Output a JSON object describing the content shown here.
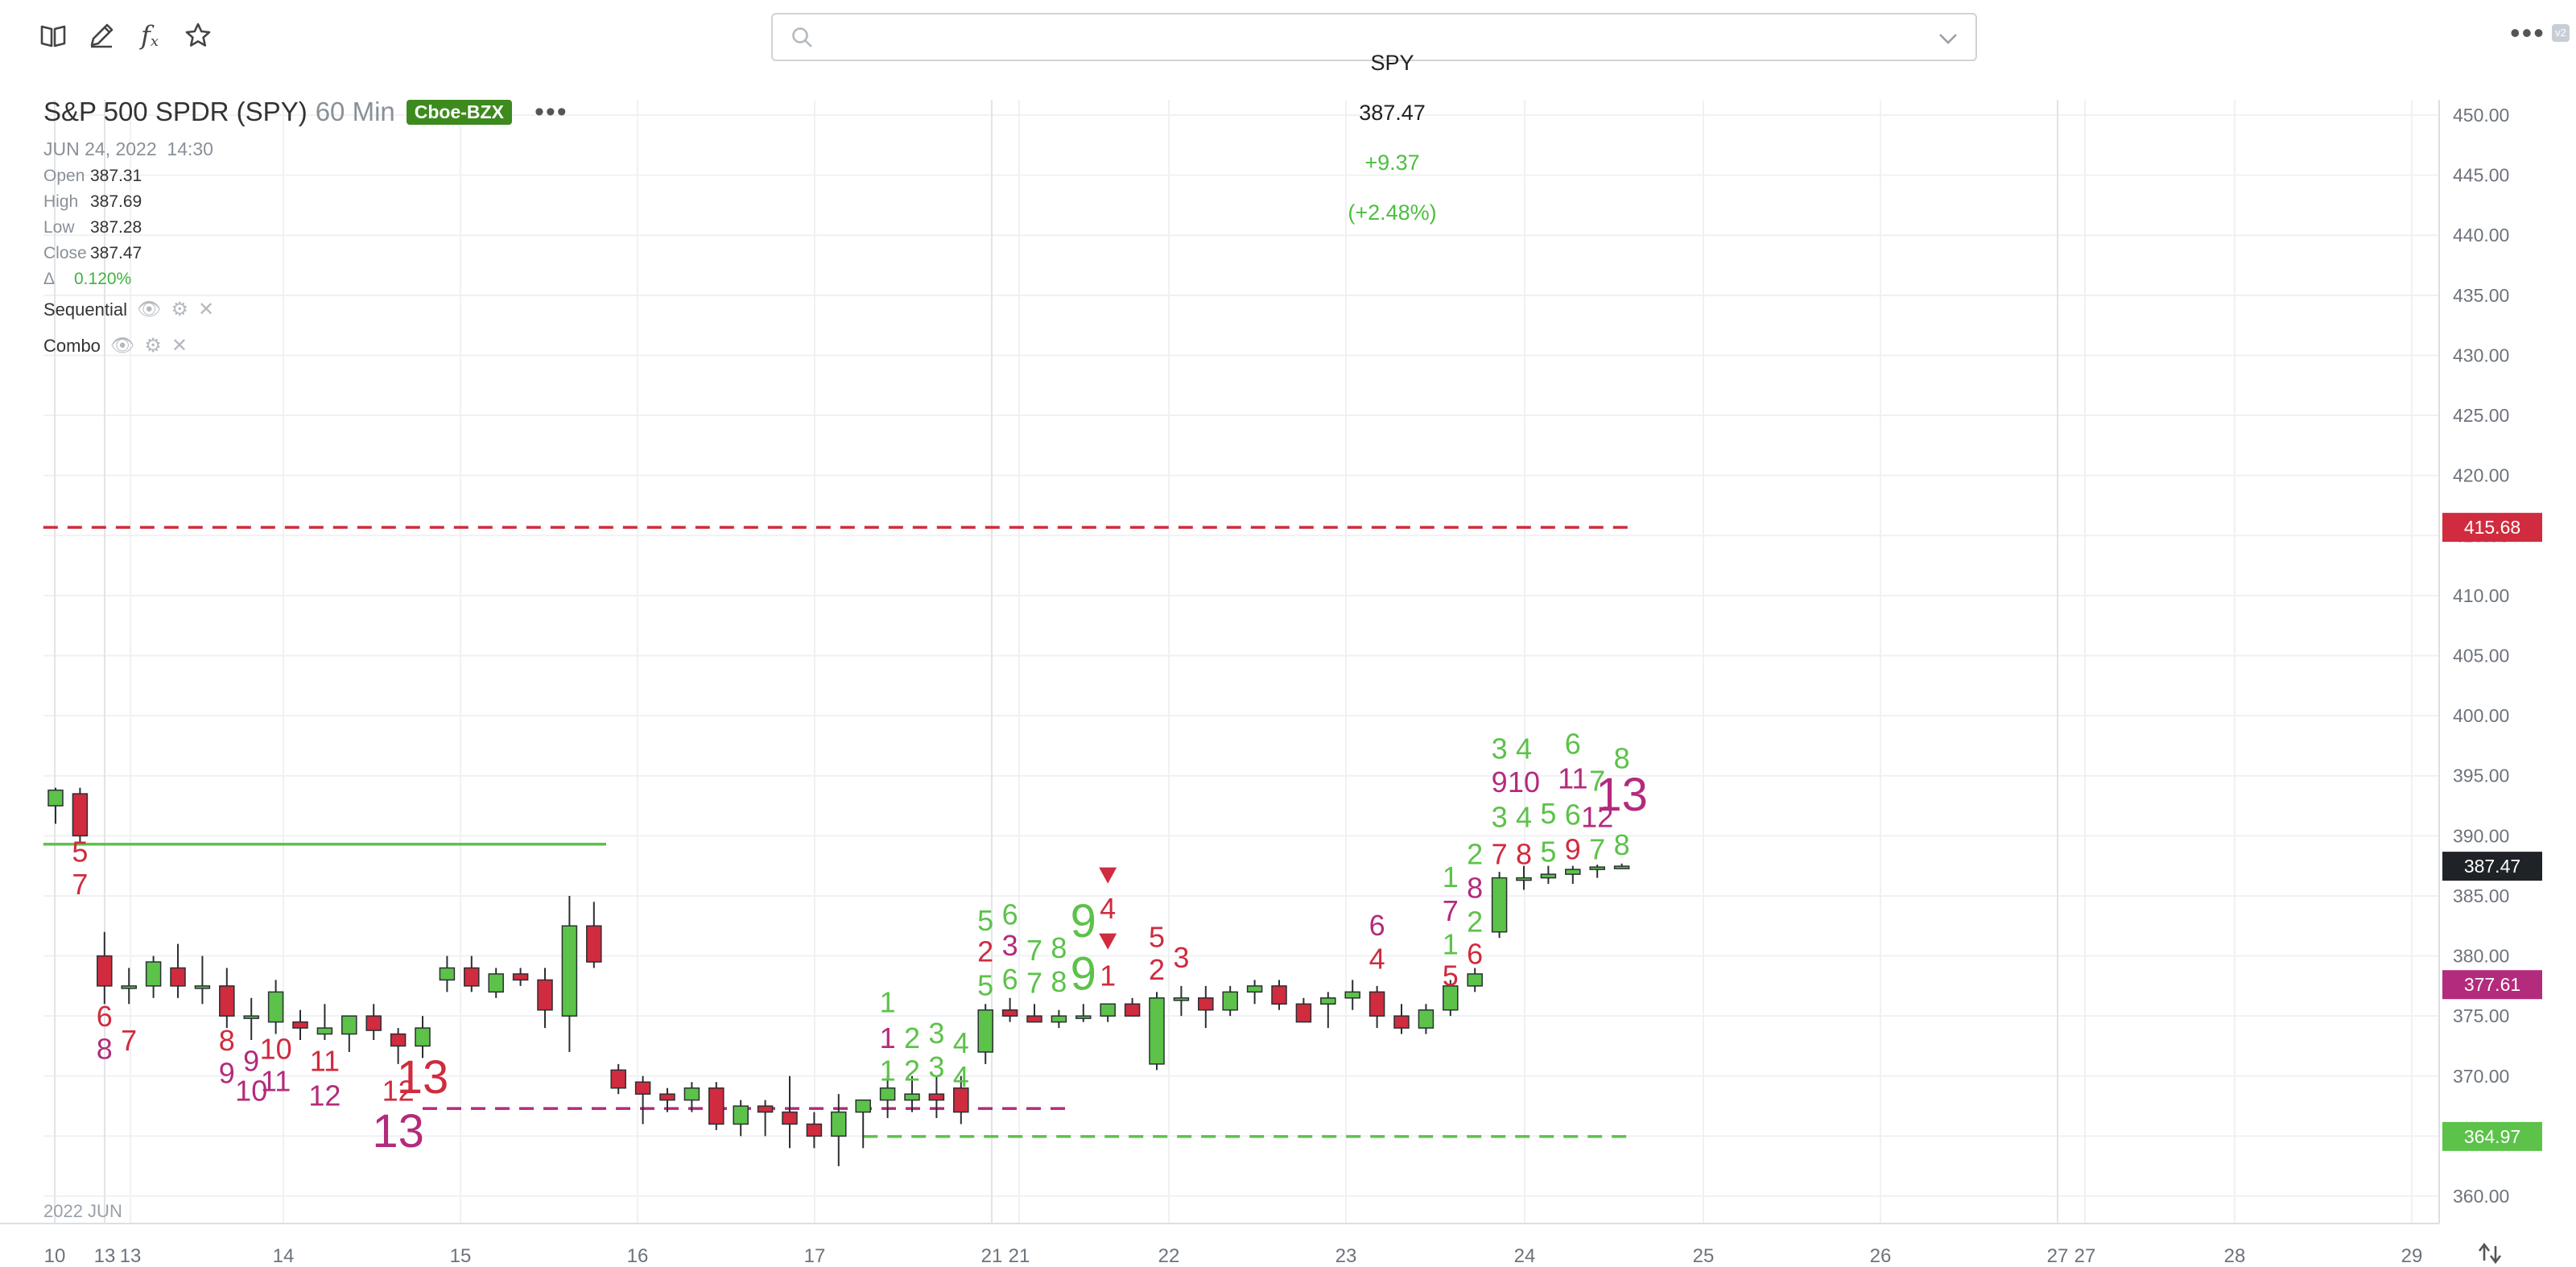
{
  "toolbar": {
    "icons": [
      "book-icon",
      "pencil-icon",
      "function-icon",
      "star-icon"
    ],
    "more_icon": "more-dots-icon"
  },
  "search": {
    "symbol": "SPY",
    "price": "387.47",
    "change": "+9.37",
    "change_pct": "(+2.48%)",
    "change_color": "#4cbf3f"
  },
  "legend": {
    "title": "S&P 500 SPDR (SPY)",
    "interval": "60 Min",
    "exchange": "Cboe-BZX",
    "datetime": "JUN 24, 2022  14:30",
    "open_label": "Open",
    "open": "387.31",
    "high_label": "High",
    "high": "387.69",
    "low_label": "Low",
    "low": "387.28",
    "close_label": "Close",
    "close": "387.47",
    "delta_label": "Δ",
    "delta": "0.120%"
  },
  "indicators": [
    "Sequential",
    "Combo"
  ],
  "colors": {
    "up": "#5cc24a",
    "down": "#d02b3e",
    "green_text": "#5cc24a",
    "red_text": "#d02b3e",
    "magenta_text": "#b32b7c",
    "grid": "#f0f1f3"
  },
  "chart_data": {
    "type": "candlestick",
    "symbol": "SPY",
    "ylim": [
      358,
      452
    ],
    "yticks": [
      "450.00",
      "445.00",
      "440.00",
      "435.00",
      "430.00",
      "425.00",
      "420.00",
      "415.00",
      "410.00",
      "405.00",
      "400.00",
      "395.00",
      "390.00",
      "385.00",
      "380.00",
      "375.00",
      "370.00",
      "365.00",
      "360.00"
    ],
    "xtick_labels": [
      "10",
      "13",
      "13",
      "14",
      "15",
      "16",
      "17",
      "21",
      "21",
      "22",
      "23",
      "24",
      "25",
      "26",
      "27",
      "27",
      "28",
      "29"
    ],
    "x_extra_label": "2022 JUN",
    "price_tags": [
      {
        "value": 415.68,
        "label": "415.68",
        "color": "#d02b3e"
      },
      {
        "value": 387.47,
        "label": "387.47",
        "color": "#1f2327"
      },
      {
        "value": 377.61,
        "label": "377.61",
        "color": "#b32b7c"
      },
      {
        "value": 364.97,
        "label": "364.97",
        "color": "#5cc24a"
      }
    ],
    "candles": [
      [
        0,
        392.5,
        394,
        391,
        393.8
      ],
      [
        1,
        393.5,
        394,
        389.5,
        390
      ],
      [
        2,
        380,
        382,
        376,
        377.5
      ],
      [
        3,
        377.5,
        379,
        376,
        377.5
      ],
      [
        4,
        377.5,
        380,
        376.5,
        379.5
      ],
      [
        5,
        379,
        381,
        376.5,
        377.5
      ],
      [
        6,
        377.5,
        380,
        376,
        377.5
      ],
      [
        7,
        377.5,
        379,
        374,
        375
      ],
      [
        8,
        375,
        376.5,
        373,
        375
      ],
      [
        9,
        374.5,
        378,
        373.5,
        377
      ],
      [
        10,
        374.5,
        375.5,
        373,
        374
      ],
      [
        11,
        373.5,
        376,
        373,
        374
      ],
      [
        12,
        373.5,
        375,
        372,
        375
      ],
      [
        13,
        375,
        376,
        373,
        373.8
      ],
      [
        14,
        373.5,
        374,
        371,
        372.5
      ],
      [
        15,
        372.5,
        375,
        371.5,
        374
      ],
      [
        16,
        378,
        380,
        377,
        379
      ],
      [
        17,
        379,
        380,
        377,
        377.5
      ],
      [
        18,
        377,
        379,
        376.5,
        378.5
      ],
      [
        19,
        378.5,
        379,
        377.5,
        378
      ],
      [
        20,
        378,
        379,
        374,
        375.5
      ],
      [
        21,
        375,
        385,
        372,
        382.5
      ],
      [
        22,
        382.5,
        384.5,
        379,
        379.5
      ],
      [
        23,
        370.5,
        371,
        368.5,
        369
      ],
      [
        24,
        369.5,
        370,
        366,
        368.5
      ],
      [
        25,
        368.5,
        369,
        367,
        368
      ],
      [
        26,
        368,
        369.5,
        367,
        369
      ],
      [
        27,
        369,
        369.5,
        365.5,
        366
      ],
      [
        28,
        366,
        368,
        365,
        367.5
      ],
      [
        29,
        367.5,
        368,
        365,
        367
      ],
      [
        30,
        367,
        370,
        364,
        366
      ],
      [
        31,
        366,
        367,
        364,
        365
      ],
      [
        32,
        365,
        368.5,
        362.5,
        367
      ],
      [
        33,
        367,
        368,
        364,
        368
      ],
      [
        34,
        368,
        370,
        366.5,
        369
      ],
      [
        35,
        368,
        370,
        367,
        368.5
      ],
      [
        36,
        368.5,
        370,
        366.5,
        368
      ],
      [
        37,
        369,
        370,
        366,
        367
      ],
      [
        38,
        372,
        376,
        371,
        375.5
      ],
      [
        39,
        375.5,
        376.5,
        374.5,
        375
      ],
      [
        40,
        375,
        376,
        374.5,
        374.5
      ],
      [
        41,
        374.5,
        375.5,
        374,
        375
      ],
      [
        42,
        375,
        376,
        374.5,
        375
      ],
      [
        43,
        375,
        376,
        374.5,
        376
      ],
      [
        44,
        376,
        376.5,
        375,
        375
      ],
      [
        45,
        371,
        377,
        370.5,
        376.5
      ],
      [
        46,
        376.5,
        377.5,
        375,
        376.5
      ],
      [
        47,
        376.5,
        377.5,
        374,
        375.5
      ],
      [
        48,
        375.5,
        377.5,
        375,
        377
      ],
      [
        49,
        377,
        378,
        376,
        377.5
      ],
      [
        50,
        377.5,
        378,
        375.5,
        376
      ],
      [
        51,
        376,
        376.5,
        374.5,
        374.5
      ],
      [
        52,
        376,
        377,
        374,
        376.5
      ],
      [
        53,
        376.5,
        378,
        375.5,
        377
      ],
      [
        54,
        377,
        377.5,
        374,
        375
      ],
      [
        55,
        375,
        376,
        373.5,
        374
      ],
      [
        56,
        374,
        376,
        373.5,
        375.5
      ],
      [
        57,
        375.5,
        378,
        375,
        377.5
      ],
      [
        58,
        377.5,
        379,
        377,
        378.5
      ],
      [
        59,
        382,
        387,
        381.5,
        386.5
      ],
      [
        60,
        386.5,
        387.5,
        385.5,
        386.5
      ],
      [
        61,
        386.5,
        387.5,
        386,
        386.8
      ],
      [
        62,
        386.8,
        387.5,
        386,
        387.2
      ],
      [
        63,
        387.2,
        387.6,
        386.5,
        387.4
      ],
      [
        64,
        387.31,
        387.69,
        387.28,
        387.47
      ]
    ],
    "counts": [
      {
        "i": 1,
        "text": "5",
        "color": "red",
        "y": 388.7
      },
      {
        "i": 1,
        "text": "7",
        "color": "red",
        "y": 386.0
      },
      {
        "i": 2,
        "text": "6",
        "color": "red",
        "y": 375.0
      },
      {
        "i": 2,
        "text": "8",
        "color": "magenta",
        "y": 372.3
      },
      {
        "i": 3,
        "text": "7",
        "color": "red",
        "y": 373.0
      },
      {
        "i": 7,
        "text": "8",
        "color": "red",
        "y": 373.0
      },
      {
        "i": 7,
        "text": "9",
        "color": "magenta",
        "y": 370.3
      },
      {
        "i": 8,
        "text": "9",
        "color": "magenta",
        "y": 371.3
      },
      {
        "i": 8,
        "text": "10",
        "color": "magenta",
        "y": 368.8
      },
      {
        "i": 9,
        "text": "10",
        "color": "red",
        "y": 372.3
      },
      {
        "i": 9,
        "text": "11",
        "color": "magenta",
        "y": 369.6
      },
      {
        "i": 11,
        "text": "11",
        "color": "red",
        "y": 371.3
      },
      {
        "i": 11,
        "text": "12",
        "color": "magenta",
        "y": 368.4
      },
      {
        "i": 14,
        "text": "12",
        "color": "red",
        "y": 368.8
      },
      {
        "i": 14,
        "text": "13",
        "color": "magenta",
        "y": 365.3,
        "big": true
      },
      {
        "i": 15,
        "text": "13",
        "color": "red",
        "y": 369.8,
        "big": true
      },
      {
        "i": 34,
        "text": "1",
        "color": "green",
        "y": 376.2
      },
      {
        "i": 34,
        "text": "1",
        "color": "magenta",
        "y": 373.2
      },
      {
        "i": 34,
        "text": "1",
        "color": "green",
        "y": 370.5
      },
      {
        "i": 35,
        "text": "2",
        "color": "green",
        "y": 373.2
      },
      {
        "i": 35,
        "text": "2",
        "color": "green",
        "y": 370.5
      },
      {
        "i": 36,
        "text": "3",
        "color": "green",
        "y": 373.6
      },
      {
        "i": 36,
        "text": "3",
        "color": "green",
        "y": 370.8
      },
      {
        "i": 37,
        "text": "4",
        "color": "green",
        "y": 372.8
      },
      {
        "i": 37,
        "text": "4",
        "color": "green",
        "y": 370.0
      },
      {
        "i": 38,
        "text": "5",
        "color": "green",
        "y": 383.0
      },
      {
        "i": 38,
        "text": "2",
        "color": "red",
        "y": 380.4
      },
      {
        "i": 38,
        "text": "5",
        "color": "green",
        "y": 377.6
      },
      {
        "i": 39,
        "text": "6",
        "color": "green",
        "y": 383.5
      },
      {
        "i": 39,
        "text": "3",
        "color": "magenta",
        "y": 380.9
      },
      {
        "i": 39,
        "text": "6",
        "color": "green",
        "y": 378.1
      },
      {
        "i": 40,
        "text": "7",
        "color": "green",
        "y": 380.5
      },
      {
        "i": 40,
        "text": "7",
        "color": "green",
        "y": 377.8
      },
      {
        "i": 41,
        "text": "8",
        "color": "green",
        "y": 380.7
      },
      {
        "i": 41,
        "text": "8",
        "color": "green",
        "y": 377.9
      },
      {
        "i": 42,
        "text": "9",
        "color": "green",
        "y": 382.8,
        "big": true
      },
      {
        "i": 42,
        "text": "9",
        "color": "green",
        "y": 378.4,
        "big": true
      },
      {
        "i": 43,
        "text": "4",
        "color": "red",
        "y": 384.0
      },
      {
        "i": 43,
        "text": "1",
        "color": "red",
        "y": 378.4
      },
      {
        "i": 45,
        "text": "5",
        "color": "red",
        "y": 381.6
      },
      {
        "i": 45,
        "text": "2",
        "color": "red",
        "y": 378.9
      },
      {
        "i": 46,
        "text": "3",
        "color": "red",
        "y": 379.9
      },
      {
        "i": 54,
        "text": "6",
        "color": "magenta",
        "y": 382.6
      },
      {
        "i": 54,
        "text": "4",
        "color": "red",
        "y": 379.8
      },
      {
        "i": 57,
        "text": "1",
        "color": "green",
        "y": 386.6
      },
      {
        "i": 57,
        "text": "7",
        "color": "magenta",
        "y": 383.8
      },
      {
        "i": 57,
        "text": "1",
        "color": "green",
        "y": 381.0
      },
      {
        "i": 57,
        "text": "5",
        "color": "red",
        "y": 378.4
      },
      {
        "i": 58,
        "text": "2",
        "color": "green",
        "y": 388.5
      },
      {
        "i": 58,
        "text": "8",
        "color": "magenta",
        "y": 385.7
      },
      {
        "i": 58,
        "text": "2",
        "color": "green",
        "y": 382.9
      },
      {
        "i": 58,
        "text": "6",
        "color": "red",
        "y": 380.2
      },
      {
        "i": 59,
        "text": "3",
        "color": "green",
        "y": 397.3
      },
      {
        "i": 59,
        "text": "9",
        "color": "magenta",
        "y": 394.5
      },
      {
        "i": 59,
        "text": "3",
        "color": "green",
        "y": 391.6
      },
      {
        "i": 59,
        "text": "7",
        "color": "red",
        "y": 388.5
      },
      {
        "i": 60,
        "text": "4",
        "color": "green",
        "y": 397.3
      },
      {
        "i": 60,
        "text": "10",
        "color": "magenta",
        "y": 394.5
      },
      {
        "i": 60,
        "text": "4",
        "color": "green",
        "y": 391.6
      },
      {
        "i": 60,
        "text": "8",
        "color": "red",
        "y": 388.5
      },
      {
        "i": 61,
        "text": "5",
        "color": "green",
        "y": 391.9
      },
      {
        "i": 61,
        "text": "5",
        "color": "green",
        "y": 388.7
      },
      {
        "i": 62,
        "text": "6",
        "color": "green",
        "y": 397.7
      },
      {
        "i": 62,
        "text": "11",
        "color": "magenta",
        "y": 394.8
      },
      {
        "i": 62,
        "text": "6",
        "color": "green",
        "y": 391.8
      },
      {
        "i": 62,
        "text": "9",
        "color": "red",
        "y": 388.9
      },
      {
        "i": 63,
        "text": "7",
        "color": "green",
        "y": 394.6
      },
      {
        "i": 63,
        "text": "12",
        "color": "magenta",
        "y": 391.6
      },
      {
        "i": 63,
        "text": "7",
        "color": "green",
        "y": 388.9
      },
      {
        "i": 64,
        "text": "8",
        "color": "green",
        "y": 396.5
      },
      {
        "i": 64,
        "text": "13",
        "color": "magenta",
        "y": 393.3,
        "big": true
      },
      {
        "i": 64,
        "text": "8",
        "color": "green",
        "y": 389.3
      }
    ],
    "markers": [
      {
        "i": 43,
        "y": 386.7,
        "color": "red"
      },
      {
        "i": 43,
        "y": 381.2,
        "color": "red"
      }
    ],
    "levels": [
      {
        "value": 415.68,
        "color": "#d02b3e",
        "dashed": true,
        "from_i": -0.5,
        "to_i": 64.5
      },
      {
        "value": 389.3,
        "color": "#5cc24a",
        "dashed": false,
        "from_i": -0.5,
        "to_i": 22.5
      },
      {
        "value": 367.3,
        "color": "#b32b7c",
        "dashed": true,
        "from_i": 15,
        "to_i": 41.5
      },
      {
        "value": 364.97,
        "color": "#5cc24a",
        "dashed": true,
        "from_i": 33,
        "to_i": 64.5
      }
    ]
  }
}
